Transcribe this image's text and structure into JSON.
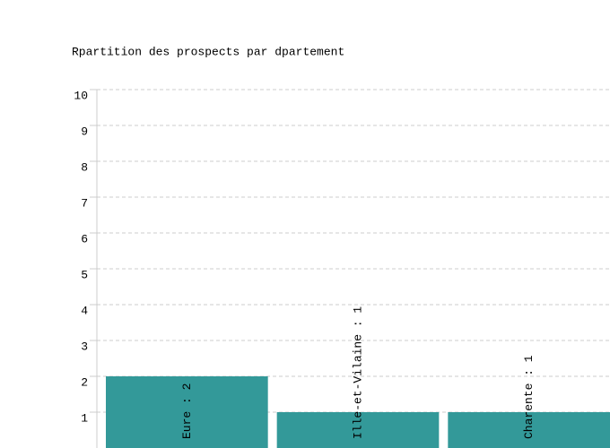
{
  "chart_data": {
    "type": "bar",
    "title": "Rpartition des prospects par dpartement",
    "values": [
      2,
      1,
      1
    ],
    "value_labels": [
      "Eure : 2",
      "Ille-et-Vilaine : 1",
      "Charente : 1"
    ],
    "color": "#339999",
    "ylim": [
      0,
      10
    ],
    "yticks": [
      1,
      2,
      3,
      4,
      5,
      6,
      7,
      8,
      9,
      10
    ],
    "grid": true
  }
}
